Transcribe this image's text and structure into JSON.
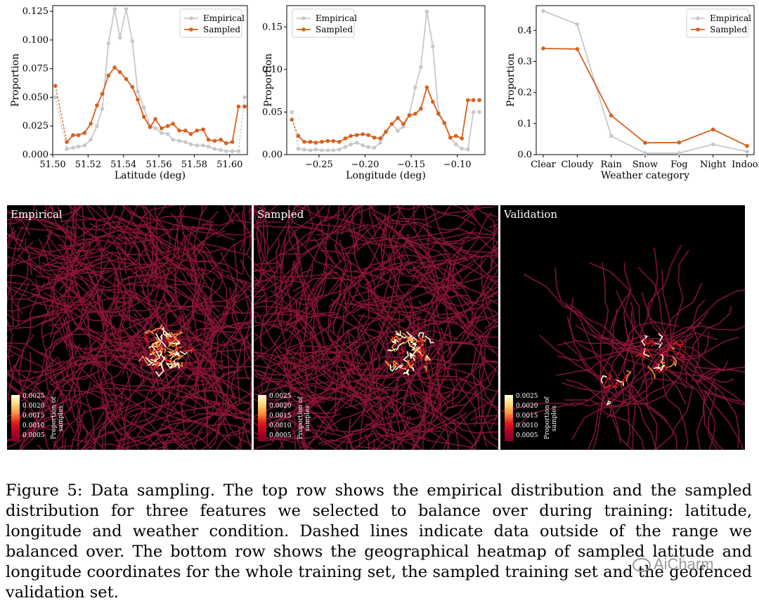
{
  "chart_data": [
    {
      "type": "line",
      "xlabel": "Latitude (deg)",
      "ylabel": "Proportion",
      "xlim": [
        51.5,
        51.61
      ],
      "ylim": [
        0,
        0.13
      ],
      "xticks": [
        51.5,
        51.52,
        51.54,
        51.56,
        51.58,
        51.6
      ],
      "xtick_labels": [
        "51.50",
        "51.52",
        "51.54",
        "51.56",
        "51.58",
        "51.60"
      ],
      "yticks": [
        0,
        0.025,
        0.05,
        0.075,
        0.1,
        0.125
      ],
      "ytick_labels": [
        "0.000",
        "0.025",
        "0.050",
        "0.075",
        "0.100",
        "0.125"
      ],
      "legend": "top-right",
      "dashed_ends": true,
      "series": [
        {
          "name": "Empirical",
          "color": "#c8c8c8",
          "x": [
            51.5015,
            51.508,
            51.5115,
            51.5145,
            51.518,
            51.5215,
            51.525,
            51.528,
            51.5315,
            51.535,
            51.538,
            51.5415,
            51.545,
            51.548,
            51.5515,
            51.555,
            51.558,
            51.5615,
            51.565,
            51.568,
            51.5715,
            51.575,
            51.578,
            51.5815,
            51.585,
            51.588,
            51.5915,
            51.595,
            51.598,
            51.6015,
            51.605,
            51.6085
          ],
          "y": [
            0.05,
            0.005,
            0.006,
            0.007,
            0.008,
            0.013,
            0.025,
            0.04,
            0.097,
            0.127,
            0.102,
            0.127,
            0.099,
            0.055,
            0.041,
            0.025,
            0.023,
            0.019,
            0.018,
            0.013,
            0.012,
            0.011,
            0.009,
            0.008,
            0.008,
            0.007,
            0.005,
            0.004,
            0.003,
            0.003,
            0.003,
            0.05
          ]
        },
        {
          "name": "Sampled",
          "color": "#d9601c",
          "x": [
            51.5015,
            51.508,
            51.5115,
            51.5145,
            51.518,
            51.5215,
            51.525,
            51.528,
            51.5315,
            51.535,
            51.538,
            51.5415,
            51.545,
            51.548,
            51.5515,
            51.555,
            51.558,
            51.5615,
            51.565,
            51.568,
            51.5715,
            51.575,
            51.578,
            51.5815,
            51.585,
            51.588,
            51.5915,
            51.595,
            51.598,
            51.6015,
            51.605,
            51.6085
          ],
          "y": [
            0.06,
            0.011,
            0.017,
            0.017,
            0.019,
            0.027,
            0.043,
            0.053,
            0.069,
            0.076,
            0.072,
            0.066,
            0.059,
            0.048,
            0.033,
            0.024,
            0.031,
            0.023,
            0.025,
            0.027,
            0.021,
            0.021,
            0.018,
            0.021,
            0.022,
            0.013,
            0.012,
            0.013,
            0.01,
            0.011,
            0.042,
            0.042
          ]
        }
      ]
    },
    {
      "type": "line",
      "xlabel": "Longitude (deg)",
      "ylabel": "Proportion",
      "xlim": [
        -0.285,
        -0.07
      ],
      "ylim": [
        0,
        0.175
      ],
      "xticks": [
        -0.25,
        -0.2,
        -0.15,
        -0.1
      ],
      "xtick_labels": [
        "−0.25",
        "−0.20",
        "−0.15",
        "−0.10"
      ],
      "yticks": [
        0,
        0.05,
        0.1,
        0.15
      ],
      "ytick_labels": [
        "0.00",
        "0.05",
        "0.10",
        "0.15"
      ],
      "legend": "top-left",
      "dashed_ends": true,
      "series": [
        {
          "name": "Empirical",
          "color": "#c8c8c8",
          "x": [
            -0.2795,
            -0.2725,
            -0.266,
            -0.2595,
            -0.2535,
            -0.247,
            -0.2405,
            -0.2345,
            -0.228,
            -0.2215,
            -0.2155,
            -0.209,
            -0.2025,
            -0.1965,
            -0.19,
            -0.1835,
            -0.1775,
            -0.171,
            -0.1645,
            -0.1585,
            -0.152,
            -0.1455,
            -0.1395,
            -0.133,
            -0.1265,
            -0.1205,
            -0.114,
            -0.1075,
            -0.1015,
            -0.095,
            -0.0885,
            -0.0825,
            -0.076
          ],
          "y": [
            0.05,
            0.007,
            0.006,
            0.005,
            0.006,
            0.005,
            0.005,
            0.005,
            0.006,
            0.009,
            0.012,
            0.014,
            0.011,
            0.009,
            0.008,
            0.014,
            0.026,
            0.036,
            0.028,
            0.033,
            0.047,
            0.079,
            0.103,
            0.168,
            0.127,
            0.05,
            0.038,
            0.02,
            0.012,
            0.007,
            0.006,
            0.05,
            0.05
          ]
        },
        {
          "name": "Sampled",
          "color": "#d9601c",
          "x": [
            -0.2795,
            -0.2725,
            -0.266,
            -0.2595,
            -0.2535,
            -0.247,
            -0.2405,
            -0.2345,
            -0.228,
            -0.2215,
            -0.2155,
            -0.209,
            -0.2025,
            -0.1965,
            -0.19,
            -0.1835,
            -0.1775,
            -0.171,
            -0.1645,
            -0.1585,
            -0.152,
            -0.1455,
            -0.1395,
            -0.133,
            -0.1265,
            -0.1205,
            -0.114,
            -0.1075,
            -0.1015,
            -0.095,
            -0.0885,
            -0.0825,
            -0.076
          ],
          "y": [
            0.041,
            0.022,
            0.015,
            0.015,
            0.014,
            0.015,
            0.016,
            0.016,
            0.015,
            0.019,
            0.022,
            0.023,
            0.024,
            0.023,
            0.02,
            0.019,
            0.027,
            0.036,
            0.043,
            0.036,
            0.046,
            0.048,
            0.054,
            0.079,
            0.062,
            0.048,
            0.037,
            0.02,
            0.022,
            0.019,
            0.064,
            0.064,
            0.064
          ]
        }
      ]
    },
    {
      "type": "line",
      "xlabel": "Weather category",
      "ylabel": "Proportion",
      "categories": [
        "Clear",
        "Cloudy",
        "Rain",
        "Snow",
        "Fog",
        "Night",
        "Indoor"
      ],
      "ylim": [
        0,
        0.48
      ],
      "yticks": [
        0,
        0.1,
        0.2,
        0.3,
        0.4
      ],
      "ytick_labels": [
        "0.0",
        "0.1",
        "0.2",
        "0.3",
        "0.4"
      ],
      "legend": "top-right",
      "dashed_ends": false,
      "series": [
        {
          "name": "Empirical",
          "color": "#c8c8c8",
          "values": [
            0.463,
            0.42,
            0.06,
            0.005,
            0.005,
            0.033,
            0.01
          ]
        },
        {
          "name": "Sampled",
          "color": "#d9601c",
          "values": [
            0.342,
            0.34,
            0.126,
            0.038,
            0.039,
            0.081,
            0.028
          ]
        }
      ]
    }
  ],
  "heatmaps": [
    {
      "title": "Empirical"
    },
    {
      "title": "Sampled"
    },
    {
      "title": "Validation"
    }
  ],
  "colorbar": {
    "ticks": [
      "0.0025",
      "0.0020",
      "0.0015",
      "0.0010",
      "0.0005"
    ],
    "label": "Proportion of samples"
  },
  "caption": "Figure 5: Data sampling. The top row shows the empirical distribution and the sampled distribution for three features we selected to balance over during training: latitude, longitude and weather condition. Dashed lines indicate data outside of the range we balanced over. The bottom row shows the geographical heatmap of sampled latitude and longitude coordinates for the whole training set, the sampled training set and the geofenced validation set.",
  "watermark": "AiCharm"
}
